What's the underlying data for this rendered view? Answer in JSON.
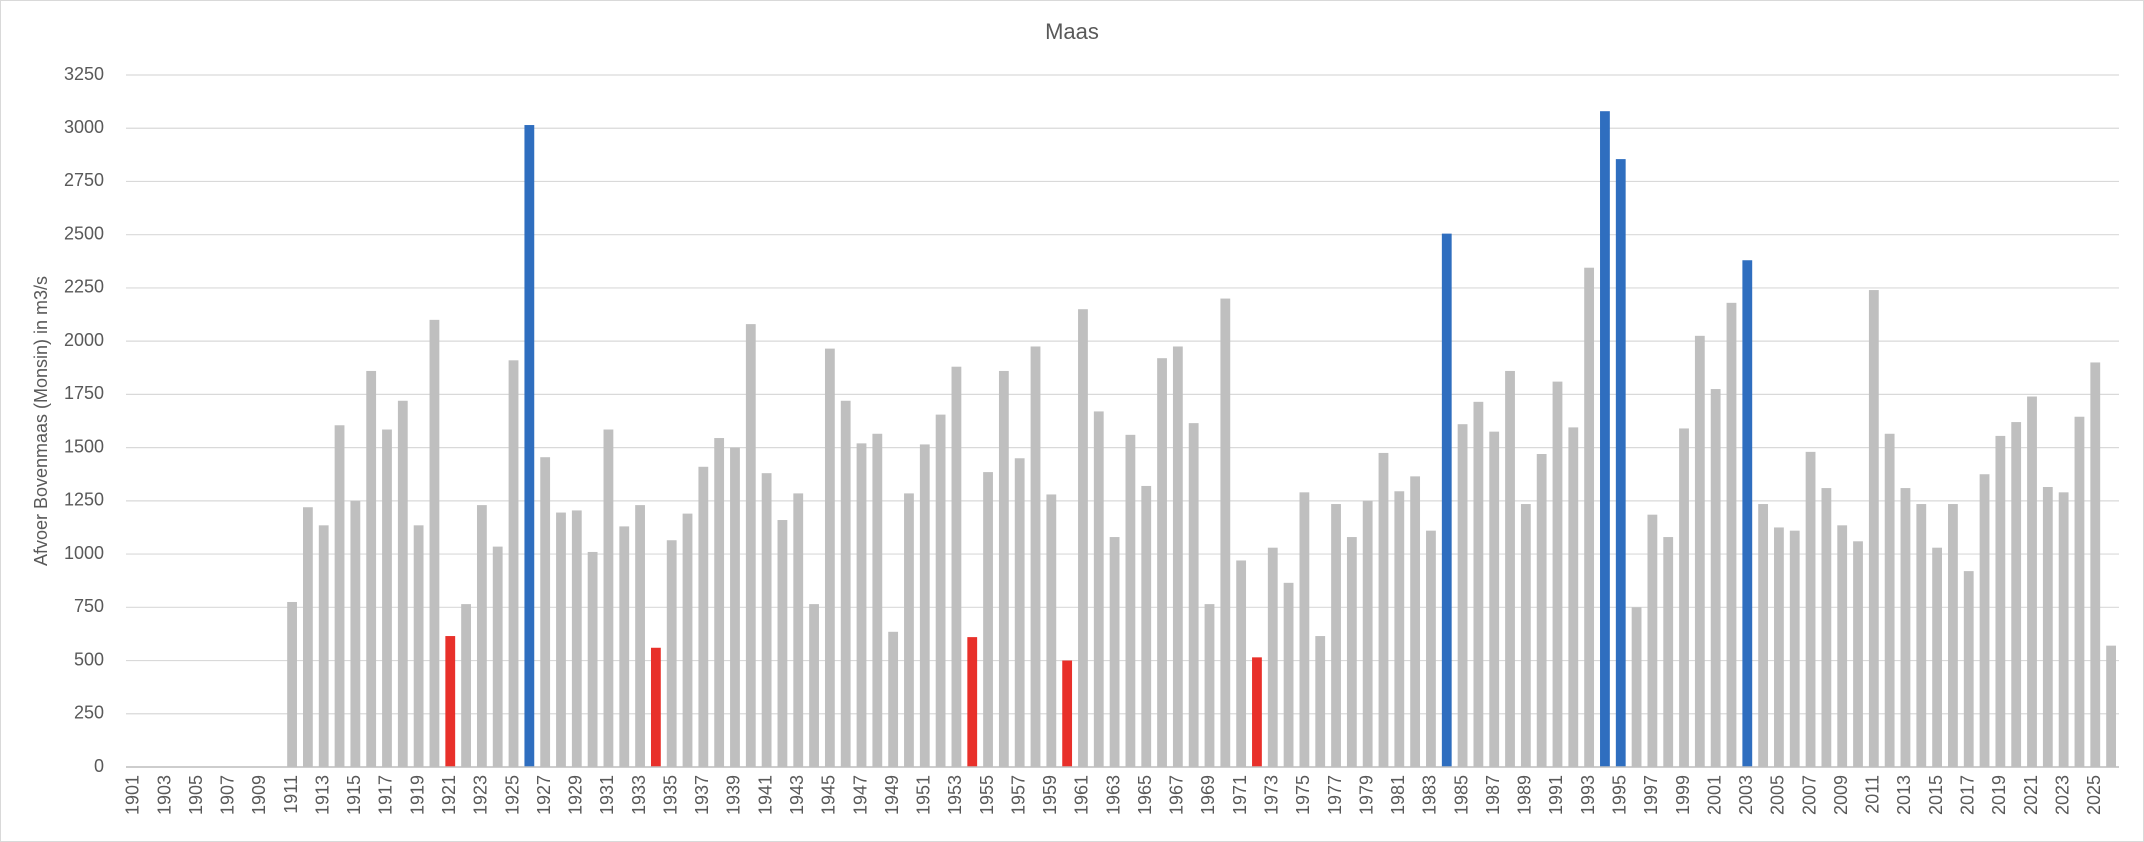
{
  "chart_data": {
    "type": "bar",
    "title": "Maas",
    "y_label": "Afvoer Bovenmaas (Monsin) in m3/s",
    "categories": [
      "1901",
      null,
      "1903",
      null,
      "1905",
      null,
      "1907",
      null,
      "1909",
      null,
      "1911",
      null,
      "1913",
      null,
      "1915",
      null,
      "1917",
      null,
      "1919",
      null,
      "1921",
      null,
      "1923",
      null,
      "1925",
      null,
      "1927",
      null,
      "1929",
      null,
      "1931",
      null,
      "1933",
      null,
      "1935",
      null,
      "1937",
      null,
      "1939",
      null,
      "1941",
      null,
      "1943",
      null,
      "1945",
      null,
      "1947",
      null,
      "1949",
      null,
      "1951",
      null,
      "1953",
      null,
      "1955",
      null,
      "1957",
      null,
      "1959",
      null,
      "1961",
      null,
      "1963",
      null,
      "1965",
      null,
      "1967",
      null,
      "1969",
      null,
      "1971",
      null,
      "1973",
      null,
      "1975",
      null,
      "1977",
      null,
      "1979",
      null,
      "1981",
      null,
      "1983",
      null,
      "1985",
      null,
      "1987",
      null,
      "1989",
      null,
      "1991",
      null,
      "1993",
      null,
      "1995",
      null,
      "1997",
      null,
      "1999",
      null,
      "2001",
      null,
      "2003",
      null,
      "2005",
      null,
      "2007",
      null,
      "2009",
      null,
      "2011",
      null,
      "2013",
      null,
      "2015",
      null,
      "2017",
      null,
      "2019",
      null,
      "2021",
      null,
      "2023",
      null,
      "2025",
      null
    ],
    "values": [
      null,
      null,
      null,
      null,
      null,
      null,
      null,
      null,
      null,
      null,
      775,
      1220,
      1135,
      1605,
      1250,
      1860,
      1585,
      1720,
      1135,
      2100,
      615,
      765,
      1230,
      1035,
      1910,
      3015,
      1455,
      1195,
      1205,
      1010,
      1585,
      1130,
      1230,
      560,
      1065,
      1190,
      1410,
      1545,
      1500,
      2080,
      1380,
      1160,
      1285,
      765,
      1965,
      1720,
      1520,
      1565,
      635,
      1285,
      1515,
      1655,
      1880,
      610,
      1385,
      1860,
      1450,
      1975,
      1280,
      500,
      2150,
      1670,
      1080,
      1560,
      1320,
      1920,
      1975,
      1615,
      765,
      2200,
      970,
      515,
      1030,
      865,
      1290,
      615,
      1235,
      1080,
      1250,
      1475,
      1295,
      1365,
      1110,
      2505,
      1610,
      1715,
      1575,
      1860,
      1235,
      1470,
      1810,
      1595,
      2345,
      3080,
      2855,
      750,
      1185,
      1080,
      1590,
      2025,
      1775,
      2180,
      2380,
      1235,
      1125,
      1110,
      1480,
      1310,
      1135,
      1060,
      2240,
      1565,
      1310,
      1235,
      1030,
      1235,
      920,
      1375,
      1555,
      1620,
      1740,
      1315,
      1290,
      1645,
      1900,
      570
    ],
    "colors": [
      "#bfbfbf",
      "#bfbfbf",
      "#bfbfbf",
      "#bfbfbf",
      "#bfbfbf",
      "#bfbfbf",
      "#bfbfbf",
      "#bfbfbf",
      "#bfbfbf",
      "#bfbfbf",
      "#bfbfbf",
      "#bfbfbf",
      "#bfbfbf",
      "#bfbfbf",
      "#bfbfbf",
      "#bfbfbf",
      "#bfbfbf",
      "#bfbfbf",
      "#bfbfbf",
      "#bfbfbf",
      "#e8302a",
      "#bfbfbf",
      "#bfbfbf",
      "#bfbfbf",
      "#bfbfbf",
      "#2f6ebf",
      "#bfbfbf",
      "#bfbfbf",
      "#bfbfbf",
      "#bfbfbf",
      "#bfbfbf",
      "#bfbfbf",
      "#bfbfbf",
      "#e8302a",
      "#bfbfbf",
      "#bfbfbf",
      "#bfbfbf",
      "#bfbfbf",
      "#bfbfbf",
      "#bfbfbf",
      "#bfbfbf",
      "#bfbfbf",
      "#bfbfbf",
      "#bfbfbf",
      "#bfbfbf",
      "#bfbfbf",
      "#bfbfbf",
      "#bfbfbf",
      "#bfbfbf",
      "#bfbfbf",
      "#bfbfbf",
      "#bfbfbf",
      "#bfbfbf",
      "#e8302a",
      "#bfbfbf",
      "#bfbfbf",
      "#bfbfbf",
      "#bfbfbf",
      "#bfbfbf",
      "#e8302a",
      "#bfbfbf",
      "#bfbfbf",
      "#bfbfbf",
      "#bfbfbf",
      "#bfbfbf",
      "#bfbfbf",
      "#bfbfbf",
      "#bfbfbf",
      "#bfbfbf",
      "#bfbfbf",
      "#bfbfbf",
      "#e8302a",
      "#bfbfbf",
      "#bfbfbf",
      "#bfbfbf",
      "#bfbfbf",
      "#bfbfbf",
      "#bfbfbf",
      "#bfbfbf",
      "#bfbfbf",
      "#bfbfbf",
      "#bfbfbf",
      "#bfbfbf",
      "#2f6ebf",
      "#bfbfbf",
      "#bfbfbf",
      "#bfbfbf",
      "#bfbfbf",
      "#bfbfbf",
      "#bfbfbf",
      "#bfbfbf",
      "#bfbfbf",
      "#bfbfbf",
      "#2f6ebf",
      "#2f6ebf",
      "#bfbfbf",
      "#bfbfbf",
      "#bfbfbf",
      "#bfbfbf",
      "#bfbfbf",
      "#bfbfbf",
      "#bfbfbf",
      "#2f6ebf",
      "#bfbfbf",
      "#bfbfbf",
      "#bfbfbf",
      "#bfbfbf",
      "#bfbfbf",
      "#bfbfbf",
      "#bfbfbf",
      "#bfbfbf",
      "#bfbfbf",
      "#bfbfbf",
      "#bfbfbf",
      "#bfbfbf",
      "#bfbfbf",
      "#bfbfbf",
      "#bfbfbf",
      "#bfbfbf",
      "#bfbfbf",
      "#bfbfbf",
      "#bfbfbf",
      "#bfbfbf",
      "#bfbfbf",
      "#bfbfbf",
      "#bfbfbf"
    ],
    "ylim": [
      0,
      3250
    ],
    "yticks": [
      0,
      250,
      500,
      750,
      1000,
      1250,
      1500,
      1750,
      2000,
      2250,
      2500,
      2750,
      3000,
      3250
    ],
    "grid": true
  }
}
